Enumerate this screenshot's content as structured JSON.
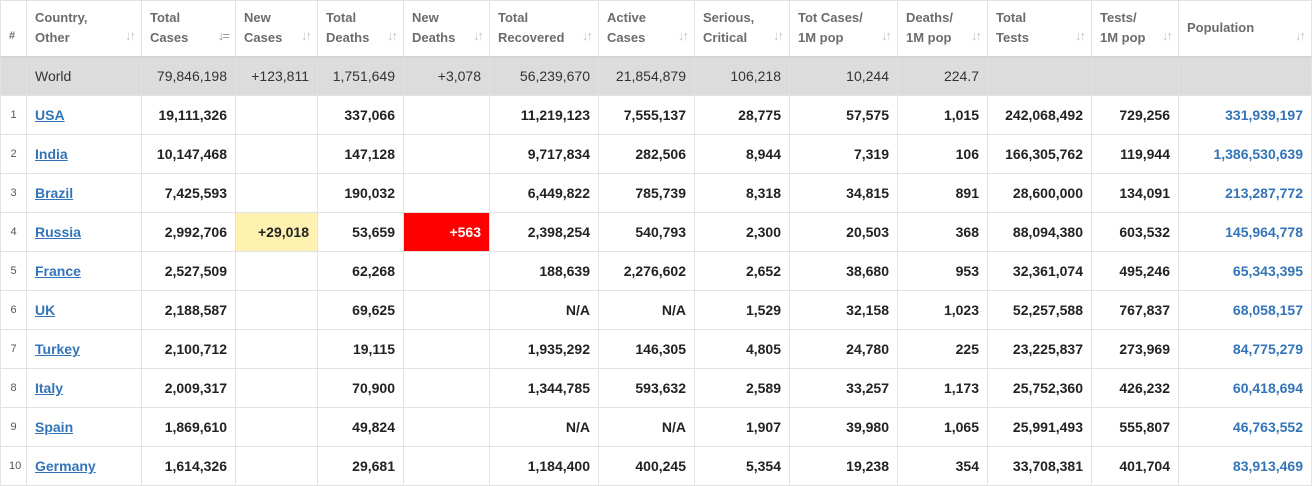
{
  "columns": [
    {
      "line1": "#",
      "line2": ""
    },
    {
      "line1": "Country,",
      "line2": "Other"
    },
    {
      "line1": "Total",
      "line2": "Cases"
    },
    {
      "line1": "New",
      "line2": "Cases"
    },
    {
      "line1": "Total",
      "line2": "Deaths"
    },
    {
      "line1": "New",
      "line2": "Deaths"
    },
    {
      "line1": "Total",
      "line2": "Recovered"
    },
    {
      "line1": "Active",
      "line2": "Cases"
    },
    {
      "line1": "Serious,",
      "line2": "Critical"
    },
    {
      "line1": "Tot Cases/",
      "line2": "1M pop"
    },
    {
      "line1": "Deaths/",
      "line2": "1M pop"
    },
    {
      "line1": "Total",
      "line2": "Tests"
    },
    {
      "line1": "Tests/",
      "line2": "1M pop"
    },
    {
      "line1": "Population",
      "line2": ""
    }
  ],
  "sort_icons": {
    "default": "↓↑",
    "active": "↓="
  },
  "world": {
    "name": "World",
    "total_cases": "79,846,198",
    "new_cases": "+123,811",
    "total_deaths": "1,751,649",
    "new_deaths": "+3,078",
    "total_recovered": "56,239,670",
    "active_cases": "21,854,879",
    "serious": "106,218",
    "cases_per_1m": "10,244",
    "deaths_per_1m": "224.7",
    "total_tests": "",
    "tests_per_1m": "",
    "population": ""
  },
  "highlight_colors": {
    "new_cases": "#fff1b0",
    "new_deaths": "#ff0000"
  },
  "rows": [
    {
      "num": "1",
      "country": "USA",
      "total_cases": "19,111,326",
      "new_cases": "",
      "total_deaths": "337,066",
      "new_deaths": "",
      "total_recovered": "11,219,123",
      "active_cases": "7,555,137",
      "serious": "28,775",
      "cases_per_1m": "57,575",
      "deaths_per_1m": "1,015",
      "total_tests": "242,068,492",
      "tests_per_1m": "729,256",
      "population": "331,939,197"
    },
    {
      "num": "2",
      "country": "India",
      "total_cases": "10,147,468",
      "new_cases": "",
      "total_deaths": "147,128",
      "new_deaths": "",
      "total_recovered": "9,717,834",
      "active_cases": "282,506",
      "serious": "8,944",
      "cases_per_1m": "7,319",
      "deaths_per_1m": "106",
      "total_tests": "166,305,762",
      "tests_per_1m": "119,944",
      "population": "1,386,530,639"
    },
    {
      "num": "3",
      "country": "Brazil",
      "total_cases": "7,425,593",
      "new_cases": "",
      "total_deaths": "190,032",
      "new_deaths": "",
      "total_recovered": "6,449,822",
      "active_cases": "785,739",
      "serious": "8,318",
      "cases_per_1m": "34,815",
      "deaths_per_1m": "891",
      "total_tests": "28,600,000",
      "tests_per_1m": "134,091",
      "population": "213,287,772"
    },
    {
      "num": "4",
      "country": "Russia",
      "total_cases": "2,992,706",
      "new_cases": "+29,018",
      "total_deaths": "53,659",
      "new_deaths": "+563",
      "total_recovered": "2,398,254",
      "active_cases": "540,793",
      "serious": "2,300",
      "cases_per_1m": "20,503",
      "deaths_per_1m": "368",
      "total_tests": "88,094,380",
      "tests_per_1m": "603,532",
      "population": "145,964,778"
    },
    {
      "num": "5",
      "country": "France",
      "total_cases": "2,527,509",
      "new_cases": "",
      "total_deaths": "62,268",
      "new_deaths": "",
      "total_recovered": "188,639",
      "active_cases": "2,276,602",
      "serious": "2,652",
      "cases_per_1m": "38,680",
      "deaths_per_1m": "953",
      "total_tests": "32,361,074",
      "tests_per_1m": "495,246",
      "population": "65,343,395"
    },
    {
      "num": "6",
      "country": "UK",
      "total_cases": "2,188,587",
      "new_cases": "",
      "total_deaths": "69,625",
      "new_deaths": "",
      "total_recovered": "N/A",
      "active_cases": "N/A",
      "serious": "1,529",
      "cases_per_1m": "32,158",
      "deaths_per_1m": "1,023",
      "total_tests": "52,257,588",
      "tests_per_1m": "767,837",
      "population": "68,058,157"
    },
    {
      "num": "7",
      "country": "Turkey",
      "total_cases": "2,100,712",
      "new_cases": "",
      "total_deaths": "19,115",
      "new_deaths": "",
      "total_recovered": "1,935,292",
      "active_cases": "146,305",
      "serious": "4,805",
      "cases_per_1m": "24,780",
      "deaths_per_1m": "225",
      "total_tests": "23,225,837",
      "tests_per_1m": "273,969",
      "population": "84,775,279"
    },
    {
      "num": "8",
      "country": "Italy",
      "total_cases": "2,009,317",
      "new_cases": "",
      "total_deaths": "70,900",
      "new_deaths": "",
      "total_recovered": "1,344,785",
      "active_cases": "593,632",
      "serious": "2,589",
      "cases_per_1m": "33,257",
      "deaths_per_1m": "1,173",
      "total_tests": "25,752,360",
      "tests_per_1m": "426,232",
      "population": "60,418,694"
    },
    {
      "num": "9",
      "country": "Spain",
      "total_cases": "1,869,610",
      "new_cases": "",
      "total_deaths": "49,824",
      "new_deaths": "",
      "total_recovered": "N/A",
      "active_cases": "N/A",
      "serious": "1,907",
      "cases_per_1m": "39,980",
      "deaths_per_1m": "1,065",
      "total_tests": "25,991,493",
      "tests_per_1m": "555,807",
      "population": "46,763,552"
    },
    {
      "num": "10",
      "country": "Germany",
      "total_cases": "1,614,326",
      "new_cases": "",
      "total_deaths": "29,681",
      "new_deaths": "",
      "total_recovered": "1,184,400",
      "active_cases": "400,245",
      "serious": "5,354",
      "cases_per_1m": "19,238",
      "deaths_per_1m": "354",
      "total_tests": "33,708,381",
      "tests_per_1m": "401,704",
      "population": "83,913,469"
    }
  ]
}
